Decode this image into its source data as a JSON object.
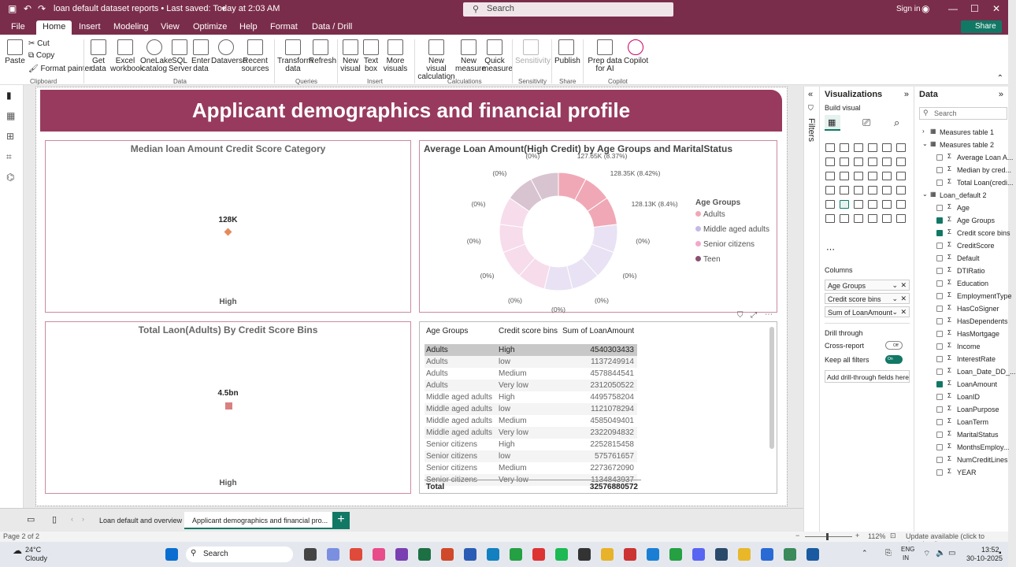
{
  "titlebar": {
    "title": "loan default dataset reports • Last saved: Today at 2:03 AM",
    "search": "Search",
    "signin": "Sign in"
  },
  "menu": {
    "items": [
      "File",
      "Home",
      "Insert",
      "Modeling",
      "View",
      "Optimize",
      "Help",
      "Format",
      "Data / Drill"
    ],
    "share": "Share"
  },
  "ribbon": {
    "clipboard": {
      "paste": "Paste",
      "cut": "Cut",
      "copy": "Copy",
      "format_painter": "Format painter",
      "group": "Clipboard"
    },
    "data": {
      "get_data": "Get data",
      "excel": "Excel workbook",
      "onelake": "OneLake catalog",
      "sql": "SQL Server",
      "enter": "Enter data",
      "dataverse": "Dataverse",
      "recent": "Recent sources",
      "group": "Data"
    },
    "queries": {
      "transform": "Transform data",
      "refresh": "Refresh",
      "group": "Queries"
    },
    "insert": {
      "new_visual": "New visual",
      "text_box": "Text box",
      "more_visuals": "More visuals",
      "group": "Insert"
    },
    "calc": {
      "new_visual_calc": "New visual calculation",
      "new_measure": "New measure",
      "quick_measure": "Quick measure",
      "group": "Calculations"
    },
    "sens": {
      "label": "Sensitivity",
      "group": "Sensitivity"
    },
    "share": {
      "publish": "Publish",
      "group": "Share"
    },
    "copilot": {
      "prep": "Prep data for AI",
      "copilot": "Copilot",
      "group": "Copilot"
    }
  },
  "report": {
    "banner": "Applicant demographics and financial profile",
    "card1": {
      "title": "Median loan Amount Credit Score Category",
      "value": "128K",
      "label": "High"
    },
    "card2": {
      "title": "Average Loan Amount(High Credit) by Age Groups and MaritalStatus",
      "labels": [
        "127.65K (8.37%)",
        "128.35K (8.42%)",
        "128.13K (8.4%)",
        "(0%)",
        "(0%)",
        "(0%)",
        "(0%)",
        "(0%)",
        "(0%)",
        "(0%)",
        "(0%)",
        "(0%)",
        "(0%)"
      ],
      "legend_title": "Age Groups",
      "legend": [
        "Adults",
        "Middle aged adults",
        "Senior citizens",
        "Teen"
      ]
    },
    "card3": {
      "title": "Total Laon(Adults) By Credit Score Bins",
      "value": "4.5bn",
      "label": "High"
    },
    "table": {
      "headers": [
        "Age Groups",
        "Credit score bins",
        "Sum of LoanAmount"
      ],
      "rows": [
        [
          "Adults",
          "High",
          "4540303433"
        ],
        [
          "Adults",
          "low",
          "1137249914"
        ],
        [
          "Adults",
          "Medium",
          "4578844541"
        ],
        [
          "Adults",
          "Very low",
          "2312050522"
        ],
        [
          "Middle aged adults",
          "High",
          "4495758204"
        ],
        [
          "Middle aged adults",
          "low",
          "1121078294"
        ],
        [
          "Middle aged adults",
          "Medium",
          "4585049401"
        ],
        [
          "Middle aged adults",
          "Very low",
          "2322094832"
        ],
        [
          "Senior citizens",
          "High",
          "2252815458"
        ],
        [
          "Senior citizens",
          "low",
          "575761657"
        ],
        [
          "Senior citizens",
          "Medium",
          "2273672090"
        ],
        [
          "Senior citizens",
          "Very low",
          "1134843937"
        ]
      ],
      "total_label": "Total",
      "total_value": "32576880572"
    }
  },
  "filters": {
    "label": "Filters"
  },
  "viz": {
    "title": "Visualizations",
    "build": "Build visual",
    "columns": "Columns",
    "fields": [
      "Age Groups",
      "Credit score bins",
      "Sum of LoanAmount"
    ],
    "drill": "Drill through",
    "cross": "Cross-report",
    "cross_state": "Off",
    "keep": "Keep all filters",
    "keep_state": "On",
    "add": "Add drill-through fields here"
  },
  "data": {
    "title": "Data",
    "search": "Search",
    "items": [
      {
        "t": "Measures table 1",
        "l": 0,
        "cb": "none"
      },
      {
        "t": "Measures table 2",
        "l": 0,
        "cb": "none"
      },
      {
        "t": "Average Loan A...",
        "l": 1,
        "cb": "off"
      },
      {
        "t": "Median by cred...",
        "l": 1,
        "cb": "off"
      },
      {
        "t": "Total Loan(credi...",
        "l": 1,
        "cb": "off"
      },
      {
        "t": "Loan_default 2",
        "l": 0,
        "cb": "none"
      },
      {
        "t": "Age",
        "l": 1,
        "cb": "off"
      },
      {
        "t": "Age Groups",
        "l": 1,
        "cb": "on"
      },
      {
        "t": "Credit score bins",
        "l": 1,
        "cb": "on"
      },
      {
        "t": "CreditScore",
        "l": 1,
        "cb": "off"
      },
      {
        "t": "Default",
        "l": 1,
        "cb": "off"
      },
      {
        "t": "DTIRatio",
        "l": 1,
        "cb": "off"
      },
      {
        "t": "Education",
        "l": 1,
        "cb": "off"
      },
      {
        "t": "EmploymentType",
        "l": 1,
        "cb": "off"
      },
      {
        "t": "HasCoSigner",
        "l": 1,
        "cb": "off"
      },
      {
        "t": "HasDependents",
        "l": 1,
        "cb": "off"
      },
      {
        "t": "HasMortgage",
        "l": 1,
        "cb": "off"
      },
      {
        "t": "Income",
        "l": 1,
        "cb": "off"
      },
      {
        "t": "InterestRate",
        "l": 1,
        "cb": "off"
      },
      {
        "t": "Loan_Date_DD_...",
        "l": 1,
        "cb": "off"
      },
      {
        "t": "LoanAmount",
        "l": 1,
        "cb": "on"
      },
      {
        "t": "LoanID",
        "l": 1,
        "cb": "off"
      },
      {
        "t": "LoanPurpose",
        "l": 1,
        "cb": "off"
      },
      {
        "t": "LoanTerm",
        "l": 1,
        "cb": "off"
      },
      {
        "t": "MaritalStatus",
        "l": 1,
        "cb": "off"
      },
      {
        "t": "MonthsEmploy...",
        "l": 1,
        "cb": "off"
      },
      {
        "t": "NumCreditLines",
        "l": 1,
        "cb": "off"
      },
      {
        "t": "YEAR",
        "l": 1,
        "cb": "off"
      }
    ]
  },
  "tabs": {
    "items": [
      "Loan default and overview",
      "Applicant demographics and financial pro..."
    ],
    "add": "+"
  },
  "status": {
    "page": "Page 2 of 2",
    "zoom": "112%",
    "update": "Update available (click to download)"
  },
  "taskbar": {
    "temp": "24°C",
    "weather": "Cloudy",
    "search": "Search",
    "lang1": "ENG",
    "lang2": "IN",
    "time": "13:52",
    "date": "30-10-2025"
  },
  "colors": {
    "accent": "#7a2d4a",
    "banner": "#983a5e",
    "teal": "#117865",
    "adults": "#f0a8b6",
    "middle": "#e8e2f4",
    "senior": "#f7dcec",
    "teen": "#d8c4d0"
  }
}
